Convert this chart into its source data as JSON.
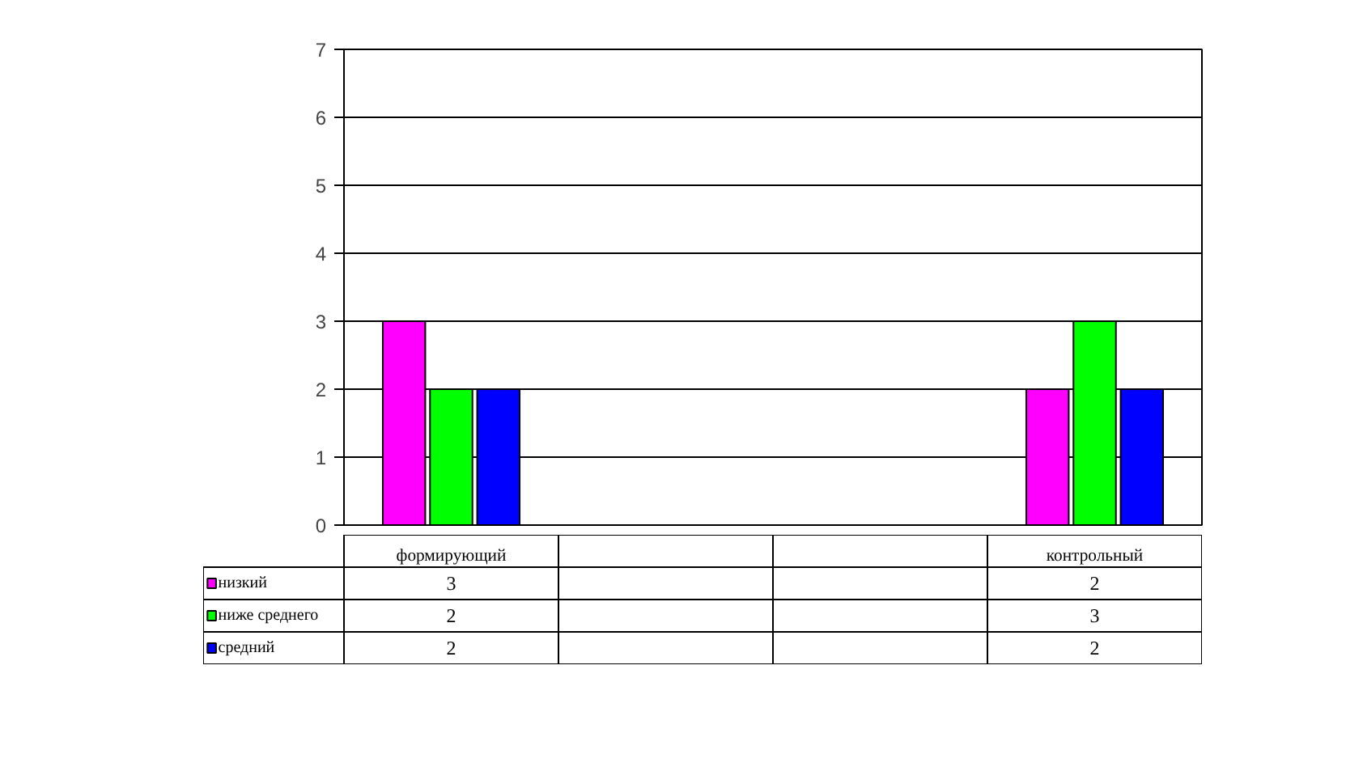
{
  "chart_data": {
    "type": "bar",
    "categories": [
      "формирующий",
      null,
      null,
      "контрольный"
    ],
    "series": [
      {
        "name": "низкий",
        "color": "#ff00ff",
        "values": [
          3,
          null,
          null,
          2
        ]
      },
      {
        "name": "ниже среднего",
        "color": "#00ff00",
        "values": [
          2,
          null,
          null,
          3
        ]
      },
      {
        "name": "средний",
        "color": "#0000ff",
        "values": [
          2,
          null,
          null,
          2
        ]
      }
    ],
    "ylim": [
      0,
      7
    ],
    "yticks": [
      0,
      1,
      2,
      3,
      4,
      5,
      6,
      7
    ],
    "grid": "y",
    "legend": "bottom",
    "data_labels": true
  }
}
